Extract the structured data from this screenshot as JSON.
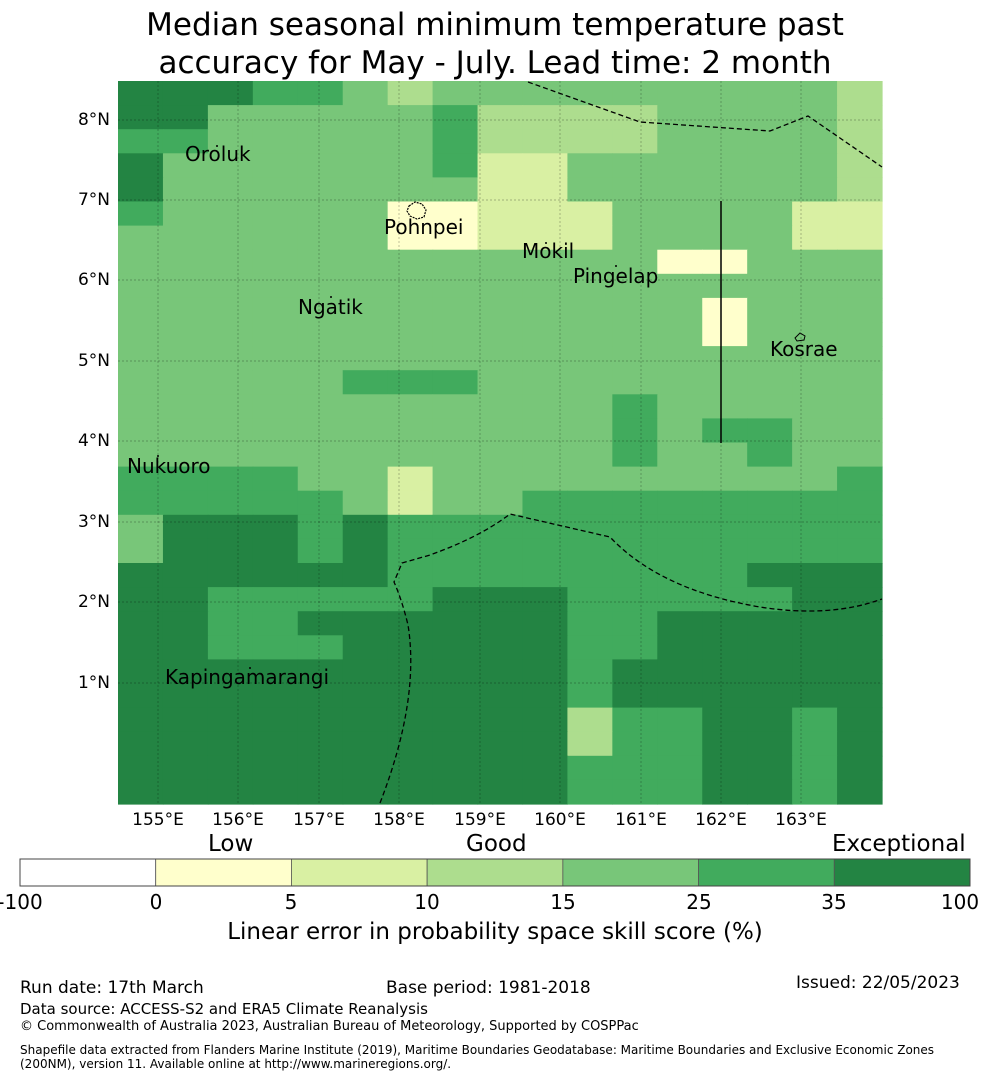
{
  "title": {
    "line1": "Median seasonal minimum temperature past",
    "line2": "accuracy for May - July. Lead time: 2 month"
  },
  "axes": {
    "lat_labels": [
      "8°N",
      "7°N",
      "6°N",
      "5°N",
      "4°N",
      "3°N",
      "2°N",
      "1°N"
    ],
    "lon_labels": [
      "155°E",
      "156°E",
      "157°E",
      "158°E",
      "159°E",
      "160°E",
      "161°E",
      "162°E",
      "163°E"
    ]
  },
  "places": [
    "Oroluk",
    "Pohnpei",
    "Mokil",
    "Pingelap",
    "Ngatik",
    "Kosrae",
    "Nukuoro",
    "Kapingamarangi"
  ],
  "colorbar": {
    "categories": [
      "Low",
      "Good",
      "Exceptional"
    ],
    "ticks": [
      "-100",
      "0",
      "5",
      "10",
      "15",
      "25",
      "35",
      "100"
    ],
    "colors": [
      "#ffffff",
      "#ffffcc",
      "#d9f0a3",
      "#addd8e",
      "#78c679",
      "#41ab5d",
      "#238443"
    ],
    "label": "Linear error in probability space skill score (%)"
  },
  "skill_grid": {
    "legend": [
      "#ffffcc",
      "#d9f0a3",
      "#addd8e",
      "#78c679",
      "#41ab5d",
      "#238443"
    ],
    "rows": [
      "66655434444444443",
      "66444445333344443",
      "55444445333344443",
      "64444445224444443",
      "64444444224444443",
      "54444411222444422",
      "44444411222444422",
      "44444444444411444",
      "44444444444444444",
      "44444444444441444",
      "44444444444441444",
      "44444444444444444",
      "44444555444444444",
      "44444444444544444",
      "44444444444545544",
      "44444444444544544",
      "55554424444444445",
      "55555424455555555",
      "46665655555555555",
      "46665655555555555",
      "66666655555555666",
      "66555556665555566",
      "66556666665566666",
      "66555666665566666",
      "66666666665666666",
      "66666666665666666",
      "66666666663556656",
      "66666666663556656",
      "66666666665556656",
      "66666666665556656"
    ]
  },
  "footer": {
    "run_date": "Run date: 17th March",
    "base_period": "Base period: 1981-2018",
    "issued": "Issued: 22/05/2023",
    "data_source": "Data source: ACCESS-S2 and ERA5 Climate Reanalysis",
    "copyright": "© Commonwealth of Australia 2023, Australian Bureau of Meteorology, Supported by COSPPac",
    "shapefile": "Shapefile data extracted from Flanders Marine Institute (2019), Maritime Boundaries Geodatabase: Maritime Boundaries and Exclusive Economic Zones (200NM), version 11. Available online at http://www.marineregions.org/."
  }
}
